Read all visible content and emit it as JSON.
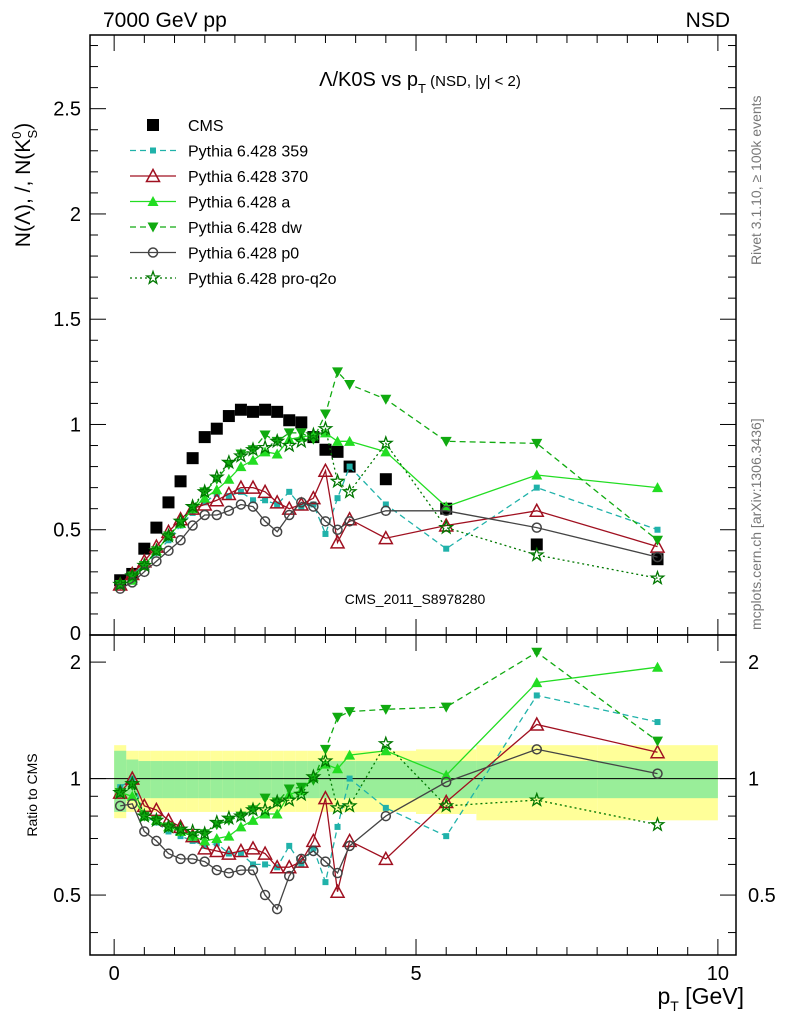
{
  "header": {
    "left": "7000 GeV pp",
    "right": "NSD"
  },
  "side_labels": {
    "rivet": "Rivet 3.1.10, ≥ 100k events",
    "mcplots": "mcplots.cern.ch [arXiv:1306.3436]"
  },
  "watermark": "CMS_2011_S8978280",
  "chart_data": [
    {
      "type": "scatter",
      "title": "Λ/K0S vs p_T (NSD, |y| < 2)",
      "xlabel": "p_T [GeV]",
      "ylabel": "N(Λ), /, N(K_S^0)",
      "xlim": [
        -0.4,
        10.3
      ],
      "ylim": [
        0,
        2.85
      ],
      "x_ticks": [
        0,
        5,
        10
      ],
      "y_ticks": [
        0.5,
        1,
        1.5,
        2,
        2.5
      ],
      "legend_position": "top-left",
      "series": [
        {
          "name": "CMS",
          "color": "#000000",
          "marker": "square",
          "line": "none",
          "x": [
            0.1,
            0.3,
            0.5,
            0.7,
            0.9,
            1.1,
            1.3,
            1.5,
            1.7,
            1.9,
            2.1,
            2.3,
            2.5,
            2.7,
            2.9,
            3.1,
            3.3,
            3.5,
            3.7,
            3.9,
            4.5,
            5.5,
            7.0,
            9.0
          ],
          "y": [
            0.26,
            0.29,
            0.41,
            0.51,
            0.63,
            0.73,
            0.84,
            0.94,
            0.98,
            1.04,
            1.07,
            1.06,
            1.07,
            1.06,
            1.02,
            1.01,
            0.94,
            0.88,
            0.87,
            0.8,
            0.74,
            0.6,
            0.43,
            0.36
          ]
        },
        {
          "name": "Pythia 6.428 359",
          "color": "#20b2aa",
          "marker": "small-square",
          "line": "dashed",
          "x": [
            0.1,
            0.3,
            0.5,
            0.7,
            0.9,
            1.1,
            1.3,
            1.5,
            1.7,
            1.9,
            2.1,
            2.3,
            2.5,
            2.7,
            2.9,
            3.1,
            3.3,
            3.5,
            3.7,
            3.9,
            4.5,
            5.5,
            7.0,
            9.0
          ],
          "y": [
            0.24,
            0.29,
            0.33,
            0.39,
            0.45,
            0.52,
            0.58,
            0.63,
            0.67,
            0.66,
            0.68,
            0.64,
            0.64,
            0.62,
            0.68,
            0.61,
            0.62,
            0.48,
            0.65,
            0.8,
            0.62,
            0.41,
            0.7,
            0.5
          ]
        },
        {
          "name": "Pythia 6.428 370",
          "color": "#a01020",
          "marker": "open-triangle",
          "line": "solid",
          "x": [
            0.1,
            0.3,
            0.5,
            0.7,
            0.9,
            1.1,
            1.3,
            1.5,
            1.7,
            1.9,
            2.1,
            2.3,
            2.5,
            2.7,
            2.9,
            3.1,
            3.3,
            3.5,
            3.7,
            3.9,
            4.5,
            5.5,
            7.0,
            9.0
          ],
          "y": [
            0.24,
            0.29,
            0.35,
            0.42,
            0.49,
            0.55,
            0.6,
            0.62,
            0.64,
            0.67,
            0.7,
            0.7,
            0.68,
            0.63,
            0.6,
            0.62,
            0.65,
            0.78,
            0.44,
            0.55,
            0.46,
            0.52,
            0.59,
            0.42
          ]
        },
        {
          "name": "Pythia 6.428 a",
          "color": "#22dd22",
          "marker": "triangle",
          "line": "solid",
          "x": [
            0.1,
            0.3,
            0.5,
            0.7,
            0.9,
            1.1,
            1.3,
            1.5,
            1.7,
            1.9,
            2.1,
            2.3,
            2.5,
            2.7,
            2.9,
            3.1,
            3.3,
            3.5,
            3.7,
            3.9,
            4.5,
            5.5,
            7.0,
            9.0
          ],
          "y": [
            0.24,
            0.26,
            0.33,
            0.4,
            0.47,
            0.53,
            0.6,
            0.65,
            0.69,
            0.74,
            0.8,
            0.83,
            0.87,
            0.86,
            0.93,
            0.94,
            0.95,
            0.96,
            0.92,
            0.92,
            0.87,
            0.61,
            0.76,
            0.7
          ]
        },
        {
          "name": "Pythia 6.428 dw",
          "color": "#10aa10",
          "marker": "down-triangle",
          "line": "dashed",
          "x": [
            0.1,
            0.3,
            0.5,
            0.7,
            0.9,
            1.1,
            1.3,
            1.5,
            1.7,
            1.9,
            2.1,
            2.3,
            2.5,
            2.7,
            2.9,
            3.1,
            3.3,
            3.5,
            3.7,
            3.9,
            4.5,
            5.5,
            7.0,
            9.0
          ],
          "y": [
            0.24,
            0.28,
            0.33,
            0.4,
            0.47,
            0.53,
            0.6,
            0.68,
            0.74,
            0.81,
            0.86,
            0.88,
            0.95,
            0.92,
            0.96,
            0.96,
            0.93,
            1.05,
            1.25,
            1.19,
            1.12,
            0.92,
            0.91,
            0.45
          ]
        },
        {
          "name": "Pythia 6.428 p0",
          "color": "#444444",
          "marker": "open-circle",
          "line": "solid",
          "x": [
            0.1,
            0.3,
            0.5,
            0.7,
            0.9,
            1.1,
            1.3,
            1.5,
            1.7,
            1.9,
            2.1,
            2.3,
            2.5,
            2.7,
            2.9,
            3.1,
            3.3,
            3.5,
            3.7,
            3.9,
            4.5,
            5.5,
            7.0,
            9.0
          ],
          "y": [
            0.22,
            0.25,
            0.3,
            0.35,
            0.4,
            0.45,
            0.52,
            0.57,
            0.57,
            0.59,
            0.62,
            0.61,
            0.54,
            0.49,
            0.57,
            0.63,
            0.61,
            0.54,
            0.5,
            0.54,
            0.59,
            0.59,
            0.51,
            0.37
          ]
        },
        {
          "name": "Pythia 6.428 pro-q2o",
          "color": "#007700",
          "marker": "star",
          "line": "dotted",
          "x": [
            0.1,
            0.3,
            0.5,
            0.7,
            0.9,
            1.1,
            1.3,
            1.5,
            1.7,
            1.9,
            2.1,
            2.3,
            2.5,
            2.7,
            2.9,
            3.1,
            3.3,
            3.5,
            3.7,
            3.9,
            4.5,
            5.5,
            7.0,
            9.0
          ],
          "y": [
            0.24,
            0.28,
            0.33,
            0.4,
            0.47,
            0.54,
            0.61,
            0.68,
            0.75,
            0.82,
            0.85,
            0.88,
            0.89,
            0.92,
            0.9,
            0.92,
            0.95,
            0.98,
            0.73,
            0.68,
            0.91,
            0.51,
            0.38,
            0.27
          ]
        }
      ]
    },
    {
      "type": "scatter",
      "title": "",
      "xlabel": "p_T [GeV]",
      "ylabel": "Ratio to CMS",
      "xlim": [
        -0.4,
        10.3
      ],
      "ylim": [
        0.35,
        2.35
      ],
      "x_ticks": [
        0,
        5,
        10
      ],
      "y_ticks": [
        0.5,
        1,
        2
      ],
      "uncertainty_bands": {
        "x_edges": [
          0,
          0.2,
          0.4,
          0.6,
          0.8,
          1,
          1.2,
          1.4,
          1.6,
          1.8,
          2,
          2.2,
          2.4,
          2.6,
          2.8,
          3,
          3.2,
          3.4,
          3.6,
          3.8,
          4,
          5,
          6,
          8,
          10
        ],
        "inner_low": [
          0.82,
          0.88,
          0.89,
          0.89,
          0.89,
          0.89,
          0.89,
          0.89,
          0.89,
          0.89,
          0.89,
          0.89,
          0.89,
          0.89,
          0.89,
          0.89,
          0.89,
          0.89,
          0.89,
          0.89,
          0.89,
          0.89,
          0.89,
          0.89
        ],
        "inner_high": [
          1.18,
          1.12,
          1.11,
          1.11,
          1.11,
          1.11,
          1.11,
          1.11,
          1.11,
          1.11,
          1.11,
          1.11,
          1.11,
          1.11,
          1.11,
          1.11,
          1.11,
          1.11,
          1.11,
          1.11,
          1.11,
          1.11,
          1.11,
          1.11
        ],
        "outer_low": [
          0.79,
          0.82,
          0.82,
          0.82,
          0.82,
          0.82,
          0.82,
          0.82,
          0.82,
          0.82,
          0.82,
          0.82,
          0.82,
          0.82,
          0.82,
          0.82,
          0.82,
          0.82,
          0.82,
          0.82,
          0.82,
          0.81,
          0.78,
          0.78
        ],
        "outer_high": [
          1.22,
          1.18,
          1.18,
          1.18,
          1.18,
          1.18,
          1.18,
          1.18,
          1.18,
          1.18,
          1.18,
          1.18,
          1.18,
          1.18,
          1.18,
          1.18,
          1.18,
          1.18,
          1.18,
          1.18,
          1.18,
          1.19,
          1.22,
          1.22
        ]
      },
      "series": [
        {
          "name": "Pythia 6.428 359",
          "color": "#20b2aa",
          "marker": "small-square",
          "line": "dashed",
          "x": [
            0.1,
            0.3,
            0.5,
            0.7,
            0.9,
            1.1,
            1.3,
            1.5,
            1.7,
            1.9,
            2.1,
            2.3,
            2.5,
            2.7,
            2.9,
            3.1,
            3.3,
            3.5,
            3.7,
            3.9,
            4.5,
            5.5,
            7.0,
            9.0
          ],
          "y": [
            0.95,
            1.0,
            0.8,
            0.77,
            0.73,
            0.71,
            0.69,
            0.67,
            0.68,
            0.64,
            0.64,
            0.6,
            0.6,
            0.59,
            0.67,
            0.6,
            0.66,
            0.54,
            0.75,
            1.0,
            0.84,
            0.71,
            1.64,
            1.4
          ]
        },
        {
          "name": "Pythia 6.428 370",
          "color": "#a01020",
          "marker": "open-triangle",
          "line": "solid",
          "x": [
            0.1,
            0.3,
            0.5,
            0.7,
            0.9,
            1.1,
            1.3,
            1.5,
            1.7,
            1.9,
            2.1,
            2.3,
            2.5,
            2.7,
            2.9,
            3.1,
            3.3,
            3.5,
            3.7,
            3.9,
            4.5,
            5.5,
            7.0,
            9.0
          ],
          "y": [
            0.92,
            1.0,
            0.85,
            0.83,
            0.78,
            0.75,
            0.71,
            0.66,
            0.65,
            0.64,
            0.65,
            0.66,
            0.64,
            0.59,
            0.59,
            0.61,
            0.69,
            0.89,
            0.51,
            0.69,
            0.62,
            0.87,
            1.38,
            1.17
          ]
        },
        {
          "name": "Pythia 6.428 a",
          "color": "#22dd22",
          "marker": "triangle",
          "line": "solid",
          "x": [
            0.1,
            0.3,
            0.5,
            0.7,
            0.9,
            1.1,
            1.3,
            1.5,
            1.7,
            1.9,
            2.1,
            2.3,
            2.5,
            2.7,
            2.9,
            3.1,
            3.3,
            3.5,
            3.7,
            3.9,
            4.5,
            5.5,
            7.0,
            9.0
          ],
          "y": [
            0.92,
            0.9,
            0.8,
            0.78,
            0.75,
            0.73,
            0.71,
            0.69,
            0.7,
            0.71,
            0.75,
            0.78,
            0.81,
            0.81,
            0.91,
            0.93,
            1.01,
            1.09,
            1.06,
            1.15,
            1.18,
            1.02,
            1.77,
            1.94
          ]
        },
        {
          "name": "Pythia 6.428 dw",
          "color": "#10aa10",
          "marker": "down-triangle",
          "line": "dashed",
          "x": [
            0.1,
            0.3,
            0.5,
            0.7,
            0.9,
            1.1,
            1.3,
            1.5,
            1.7,
            1.9,
            2.1,
            2.3,
            2.5,
            2.7,
            2.9,
            3.1,
            3.3,
            3.5,
            3.7,
            3.9,
            4.5,
            5.5,
            7.0,
            9.0
          ],
          "y": [
            0.92,
            0.96,
            0.8,
            0.78,
            0.75,
            0.73,
            0.71,
            0.72,
            0.76,
            0.78,
            0.8,
            0.83,
            0.89,
            0.87,
            0.94,
            0.95,
            0.99,
            1.19,
            1.44,
            1.49,
            1.51,
            1.53,
            2.12,
            1.25
          ]
        },
        {
          "name": "Pythia 6.428 p0",
          "color": "#444444",
          "marker": "open-circle",
          "line": "solid",
          "x": [
            0.1,
            0.3,
            0.5,
            0.7,
            0.9,
            1.1,
            1.3,
            1.5,
            1.7,
            1.9,
            2.1,
            2.3,
            2.5,
            2.7,
            2.9,
            3.1,
            3.3,
            3.5,
            3.7,
            3.9,
            4.5,
            5.5,
            7.0,
            9.0
          ],
          "y": [
            0.85,
            0.86,
            0.73,
            0.69,
            0.64,
            0.62,
            0.62,
            0.61,
            0.58,
            0.57,
            0.58,
            0.58,
            0.5,
            0.46,
            0.56,
            0.62,
            0.65,
            0.61,
            0.57,
            0.67,
            0.8,
            0.98,
            1.19,
            1.03
          ]
        },
        {
          "name": "Pythia 6.428 pro-q2o",
          "color": "#007700",
          "marker": "star",
          "line": "dotted",
          "x": [
            0.1,
            0.3,
            0.5,
            0.7,
            0.9,
            1.1,
            1.3,
            1.5,
            1.7,
            1.9,
            2.1,
            2.3,
            2.5,
            2.7,
            2.9,
            3.1,
            3.3,
            3.5,
            3.7,
            3.9,
            4.5,
            5.5,
            7.0,
            9.0
          ],
          "y": [
            0.92,
            0.97,
            0.8,
            0.78,
            0.75,
            0.74,
            0.73,
            0.72,
            0.77,
            0.79,
            0.8,
            0.83,
            0.83,
            0.87,
            0.88,
            0.91,
            1.01,
            1.11,
            0.84,
            0.85,
            1.23,
            0.85,
            0.88,
            0.76
          ]
        }
      ]
    }
  ]
}
